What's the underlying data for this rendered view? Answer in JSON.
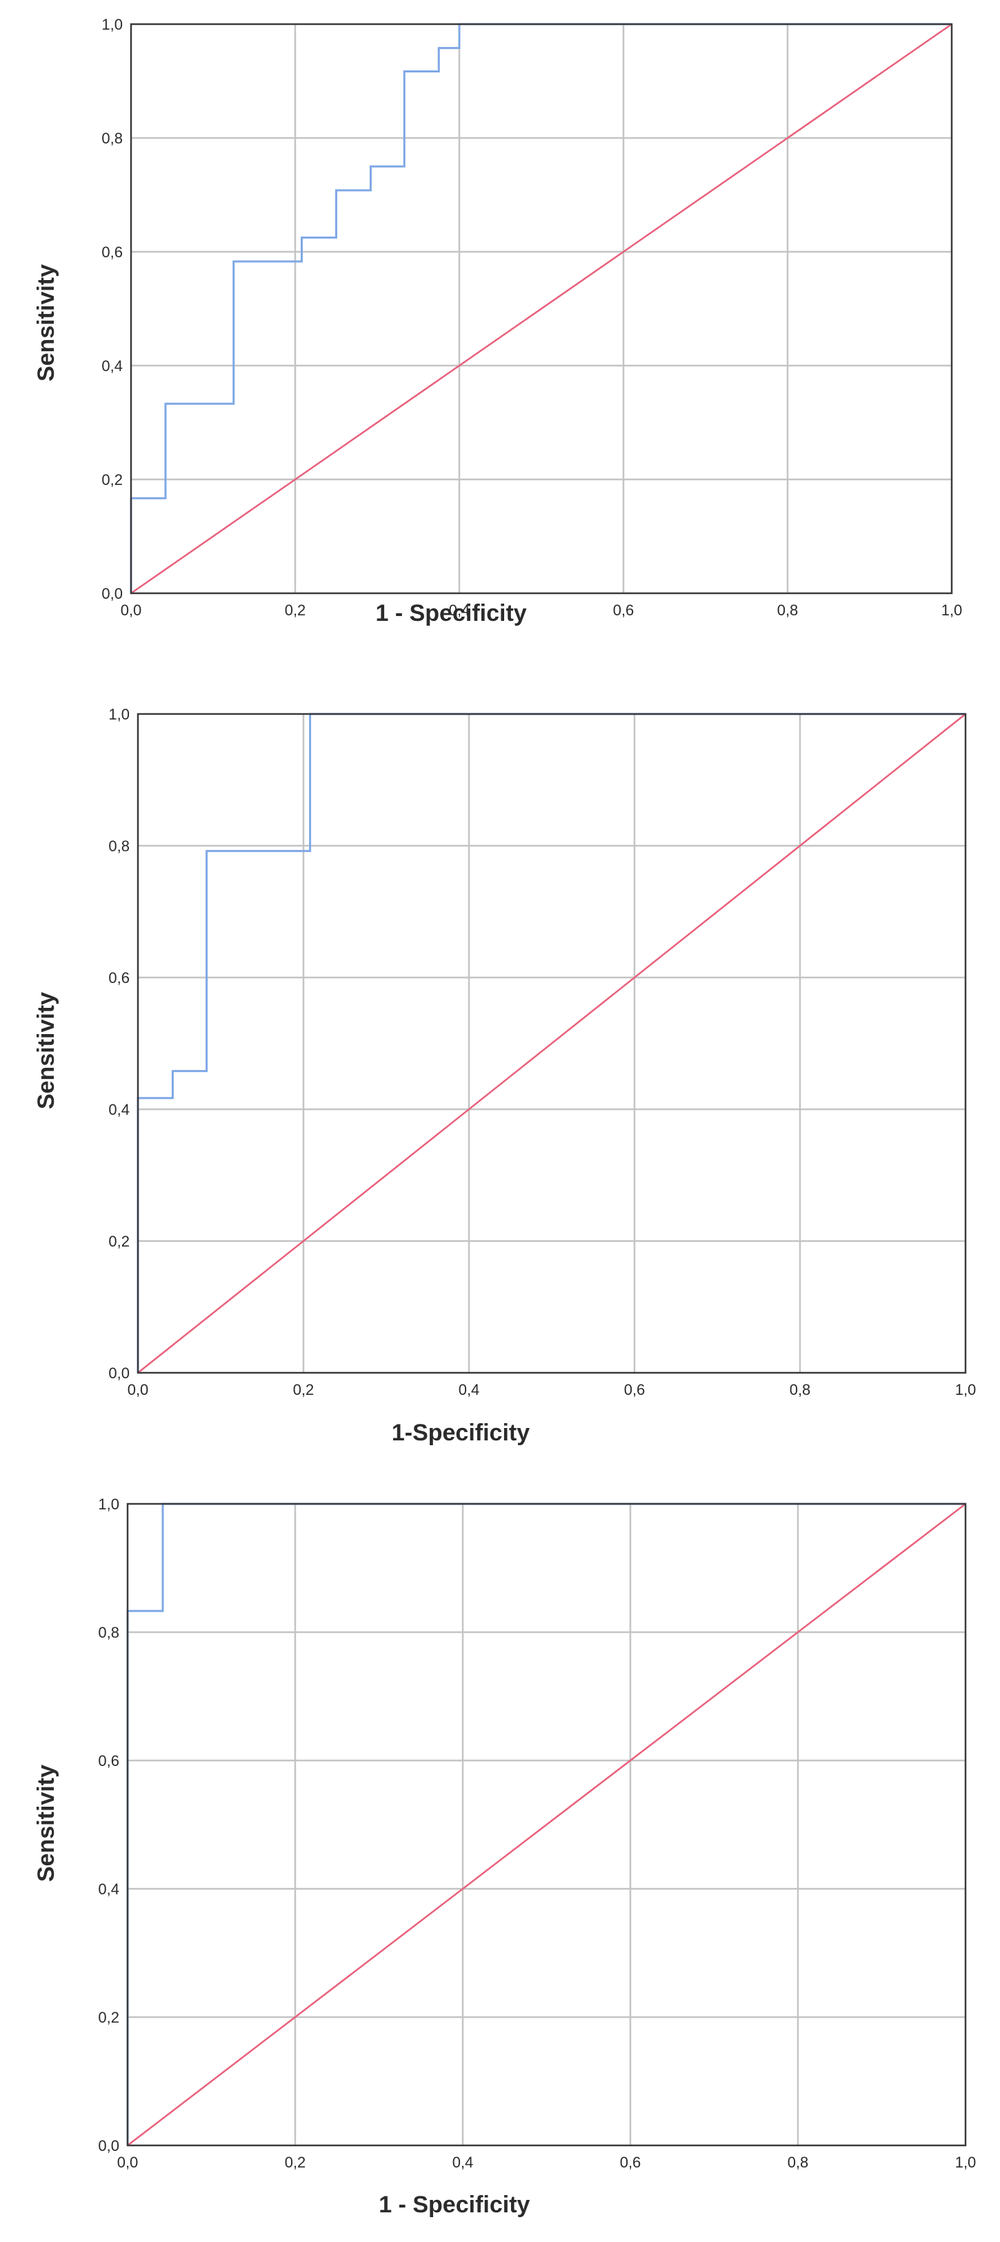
{
  "colors": {
    "roc_curve": "#7fa8e6",
    "reference_line": "#e8607b",
    "grid": "#c4c4c4",
    "frame": "#3a3a3a"
  },
  "chart_data": [
    {
      "type": "line",
      "xlabel": "1 - Specificity",
      "ylabel": "Sensitivity",
      "xlim": [
        0,
        1
      ],
      "ylim": [
        0,
        1
      ],
      "xticks": [
        "0,0",
        "0,2",
        "0,4",
        "0,6",
        "0,8",
        "1,0"
      ],
      "yticks": [
        "0,0",
        "0,2",
        "0,4",
        "0,6",
        "0,8",
        "1,0"
      ],
      "grid": true,
      "series": [
        {
          "x": [
            0,
            0,
            0.042,
            0.042,
            0.125,
            0.125,
            0.208,
            0.208,
            0.25,
            0.25,
            0.292,
            0.292,
            0.333,
            0.333,
            0.375,
            0.375,
            0.4,
            0.4,
            0.417,
            0.417,
            1
          ],
          "y": [
            0,
            0.167,
            0.167,
            0.333,
            0.333,
            0.583,
            0.583,
            0.625,
            0.625,
            0.708,
            0.708,
            0.75,
            0.75,
            0.917,
            0.917,
            0.958,
            0.958,
            1,
            1,
            1,
            1
          ]
        },
        {
          "x": [
            0,
            1
          ],
          "y": [
            0,
            1
          ]
        }
      ]
    },
    {
      "type": "line",
      "xlabel": "1-Specificity",
      "ylabel": "Sensitivity",
      "xlim": [
        0,
        1
      ],
      "ylim": [
        0,
        1
      ],
      "xticks": [
        "0,0",
        "0,2",
        "0,4",
        "0,6",
        "0,8",
        "1,0"
      ],
      "yticks": [
        "0,0",
        "0,2",
        "0,4",
        "0,6",
        "0,8",
        "1,0"
      ],
      "grid": true,
      "series": [
        {
          "x": [
            0,
            0,
            0.042,
            0.042,
            0.083,
            0.083,
            0.208,
            0.208,
            1
          ],
          "y": [
            0,
            0.417,
            0.417,
            0.458,
            0.458,
            0.792,
            0.792,
            1,
            1
          ]
        },
        {
          "x": [
            0,
            1
          ],
          "y": [
            0,
            1
          ]
        }
      ]
    },
    {
      "type": "line",
      "xlabel": "1 - Specificity",
      "ylabel": "Sensitivity",
      "xlim": [
        0,
        1
      ],
      "ylim": [
        0,
        1
      ],
      "xticks": [
        "0,0",
        "0,2",
        "0,4",
        "0,6",
        "0,8",
        "1,0"
      ],
      "yticks": [
        "0,0",
        "0,2",
        "0,4",
        "0,6",
        "0,8",
        "1,0"
      ],
      "grid": true,
      "series": [
        {
          "x": [
            0,
            0,
            0.042,
            0.042,
            1
          ],
          "y": [
            0,
            0.833,
            0.833,
            1,
            1
          ]
        },
        {
          "x": [
            0,
            1
          ],
          "y": [
            0,
            1
          ]
        }
      ]
    }
  ]
}
